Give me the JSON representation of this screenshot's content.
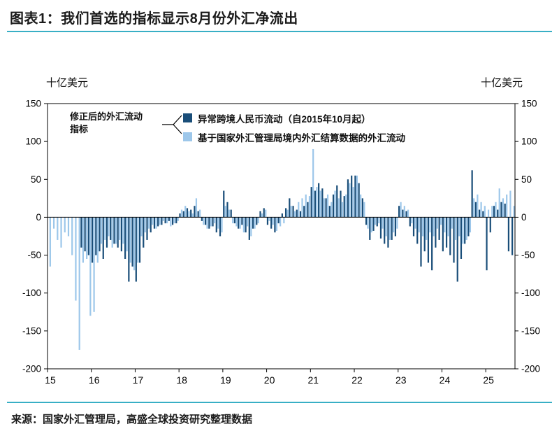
{
  "header": {
    "title": "图表1：我们首选的指标显示8月份外汇净流出"
  },
  "axes": {
    "unit_left": "十亿美元",
    "unit_right": "十亿美元"
  },
  "annotation": {
    "line1": "修正后的外汇流动",
    "line2": "指标"
  },
  "footer": {
    "source": "来源：国家外汇管理局，高盛全球投资研究整理数据"
  },
  "colors": {
    "accent_rule": "#38afc5",
    "dark_series": "#1a4e79",
    "light_series": "#9dc7ea",
    "axis": "#000000"
  },
  "chart_data": {
    "type": "bar",
    "title": "图表1：我们首选的指标显示8月份外汇净流出",
    "ylabel": "十亿美元",
    "ylim": [
      -200,
      150
    ],
    "y_ticks": [
      150,
      100,
      50,
      0,
      -50,
      -100,
      -150,
      -200
    ],
    "x_ticks": [
      "15",
      "16",
      "17",
      "18",
      "19",
      "20",
      "21",
      "22",
      "23",
      "24",
      "25"
    ],
    "x_range": {
      "start": "2015-01",
      "end": "2025-08",
      "freq": "monthly"
    },
    "grid": false,
    "legend_position": "top-inside",
    "series": [
      {
        "name": "异常跨境人民币流动（自2015年10月起）",
        "name_en": "unusual-rmb-flows",
        "color": "#1a4e79",
        "values": [
          null,
          null,
          null,
          null,
          null,
          null,
          null,
          null,
          null,
          -40,
          -45,
          -50,
          -60,
          -50,
          -45,
          -55,
          -40,
          -30,
          -35,
          -40,
          -45,
          -55,
          -85,
          -65,
          -85,
          -60,
          -40,
          -30,
          -20,
          -15,
          -12,
          -10,
          -8,
          -5,
          -10,
          -8,
          5,
          8,
          12,
          10,
          15,
          8,
          -5,
          -10,
          -15,
          -12,
          -20,
          -25,
          35,
          20,
          10,
          -8,
          -15,
          -10,
          -20,
          -30,
          -15,
          -10,
          8,
          12,
          -10,
          -15,
          -20,
          -8,
          5,
          12,
          25,
          15,
          10,
          8,
          15,
          20,
          40,
          35,
          45,
          38,
          25,
          15,
          30,
          42,
          35,
          28,
          50,
          55,
          55,
          45,
          25,
          -10,
          -30,
          -18,
          -12,
          -28,
          -35,
          -40,
          -30,
          -25,
          15,
          10,
          8,
          -12,
          -25,
          -35,
          -65,
          -45,
          -60,
          -70,
          -40,
          -30,
          -45,
          -40,
          -50,
          -60,
          -85,
          -55,
          -35,
          -25,
          62,
          20,
          10,
          8,
          -70,
          -20,
          15,
          10,
          20,
          18,
          -45,
          -50
        ]
      },
      {
        "name": "基于国家外汇管理局境内外汇结算数据的外汇流动",
        "name_en": "safe-settlement-flows",
        "color": "#9dc7ea",
        "values": [
          -65,
          -15,
          -30,
          -40,
          -20,
          -25,
          -50,
          -110,
          -175,
          -60,
          -55,
          -130,
          -125,
          -60,
          -35,
          -30,
          -25,
          -40,
          -35,
          -30,
          -35,
          -45,
          -60,
          -70,
          -60,
          -25,
          -20,
          -15,
          -10,
          -15,
          -10,
          -5,
          -8,
          -12,
          -8,
          -5,
          10,
          15,
          8,
          5,
          25,
          10,
          -10,
          -15,
          -12,
          -8,
          -15,
          -20,
          15,
          10,
          -8,
          -12,
          -15,
          -20,
          -12,
          -25,
          -15,
          -8,
          5,
          10,
          -5,
          -10,
          -18,
          -12,
          -8,
          10,
          15,
          8,
          20,
          25,
          30,
          28,
          90,
          40,
          35,
          25,
          30,
          20,
          35,
          25,
          20,
          30,
          45,
          40,
          55,
          30,
          20,
          -15,
          -20,
          -10,
          -8,
          -15,
          -25,
          -30,
          -20,
          -15,
          20,
          15,
          10,
          -8,
          -15,
          -20,
          -25,
          -30,
          -20,
          -25,
          -15,
          -10,
          -20,
          -25,
          -15,
          -30,
          -25,
          -35,
          -30,
          -20,
          25,
          30,
          20,
          15,
          10,
          15,
          20,
          38,
          25,
          30,
          35,
          15
        ]
      }
    ]
  }
}
